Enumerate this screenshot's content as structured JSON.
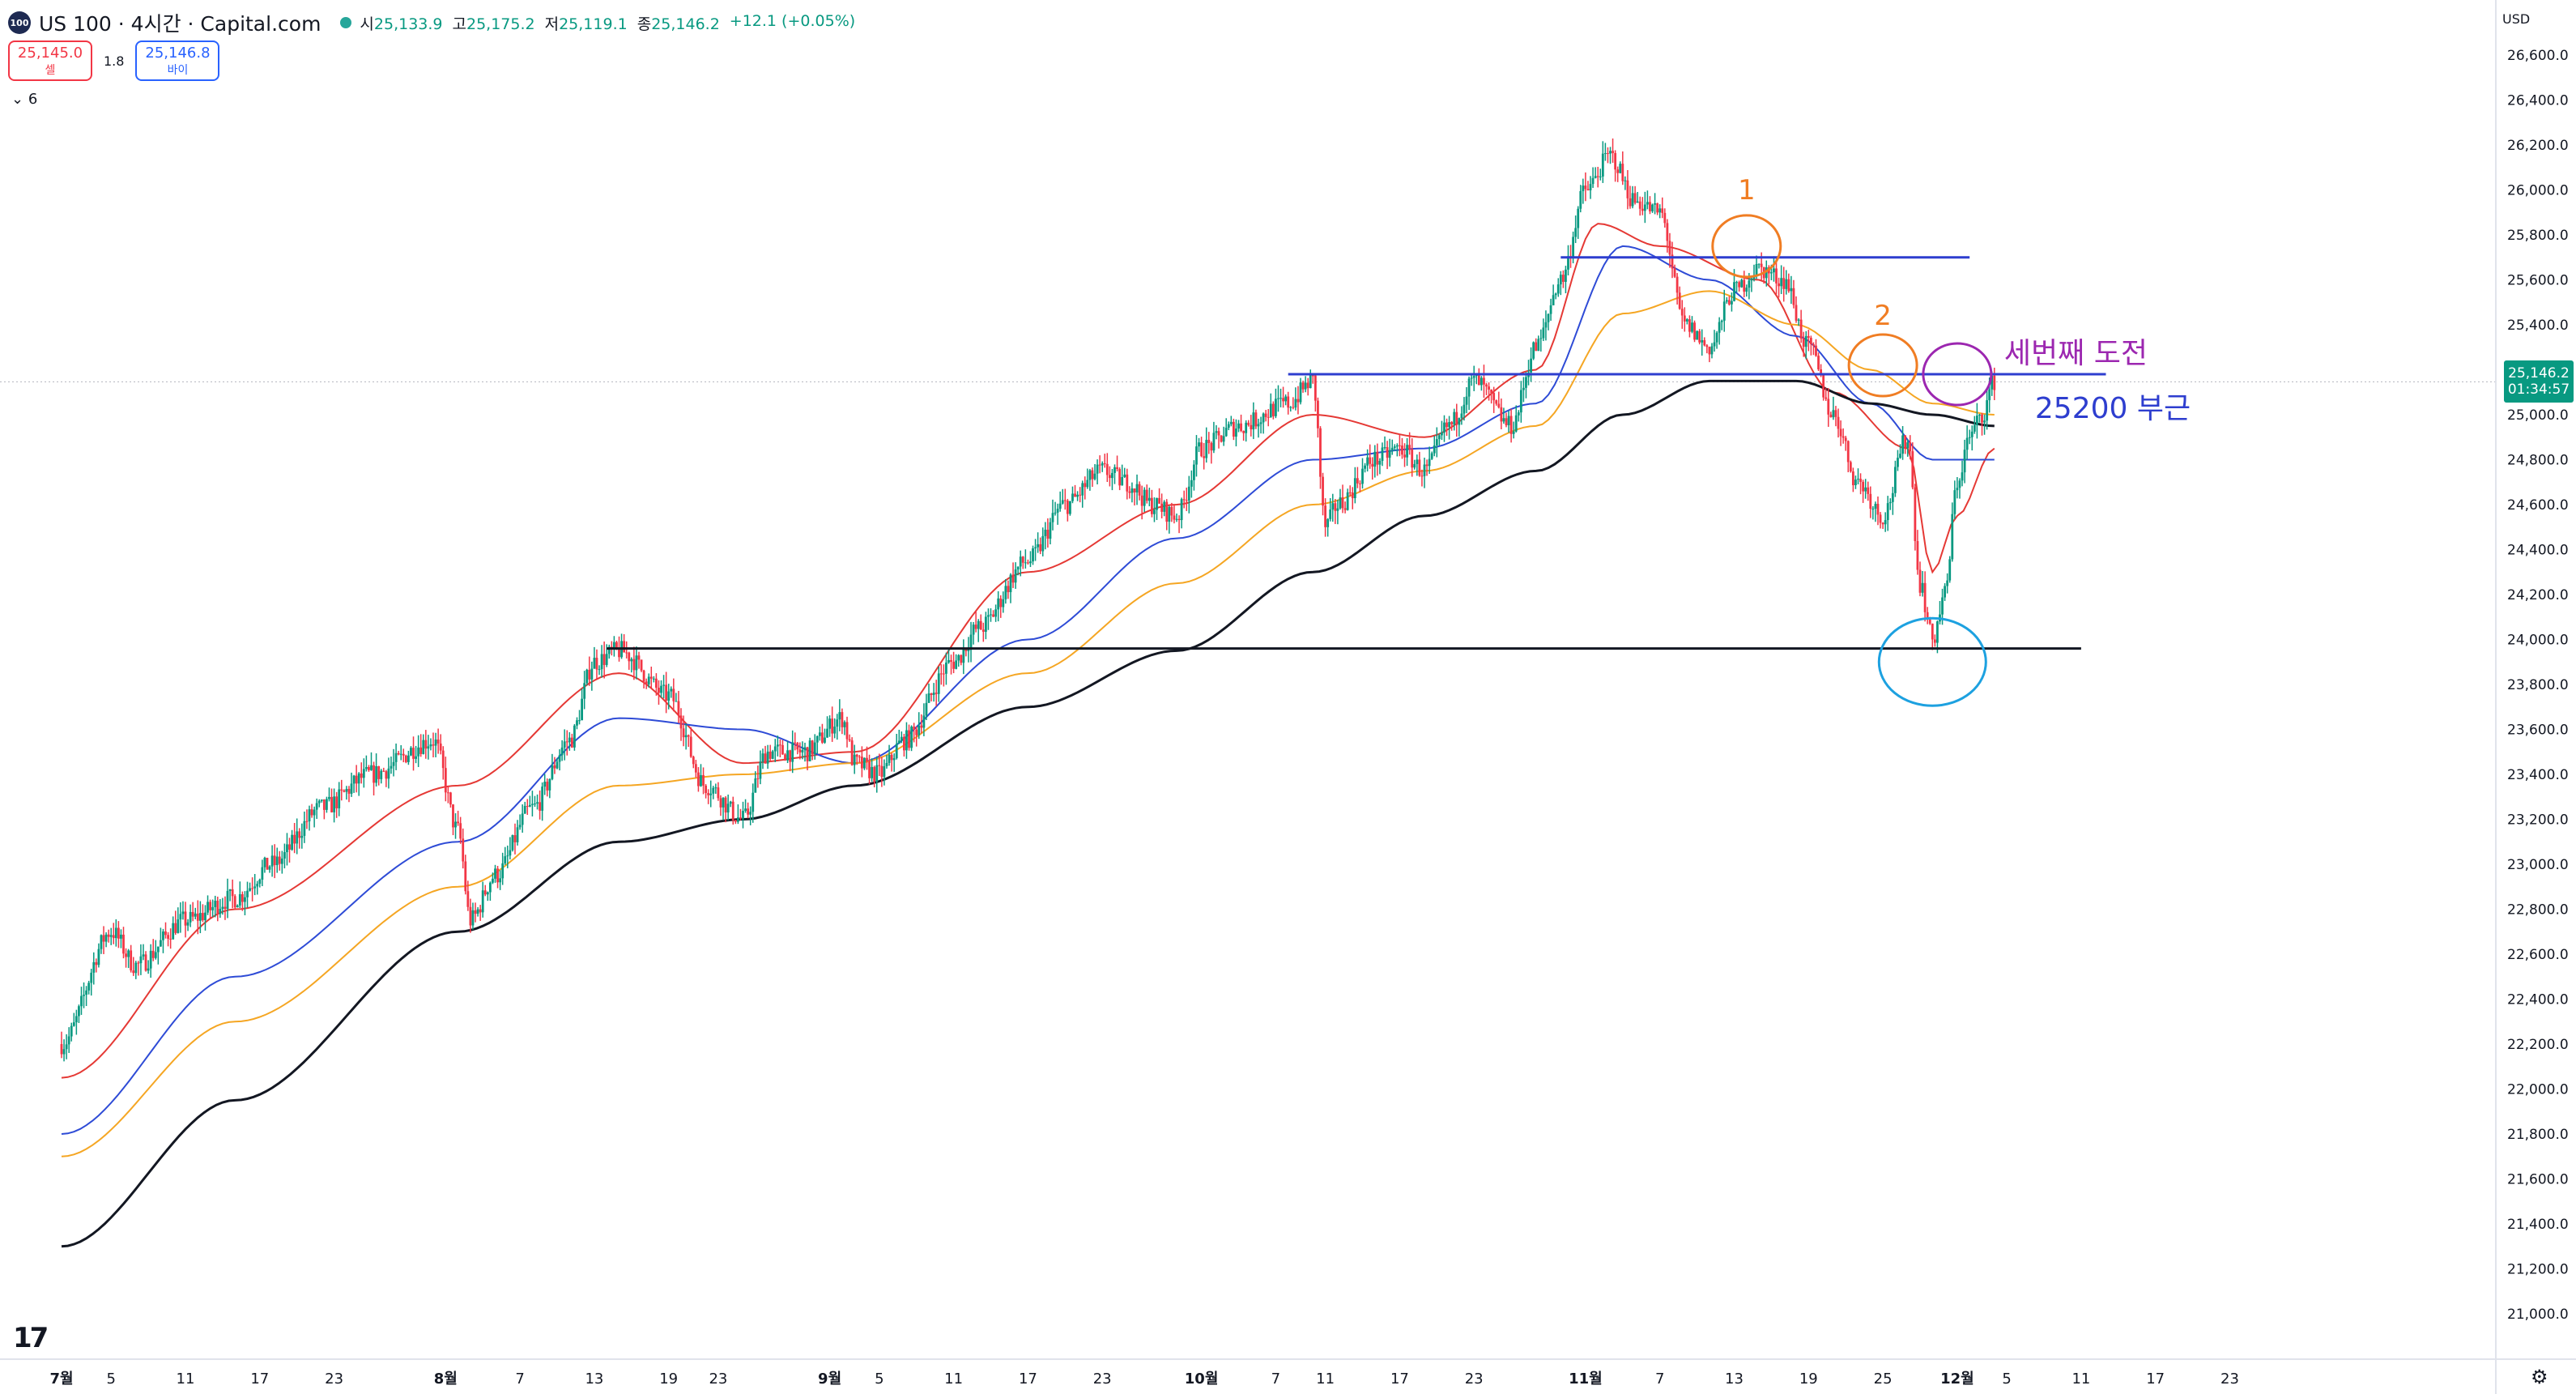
{
  "header": {
    "symbol_badge": "100",
    "title": "US 100 · 4시간 · Capital.com",
    "open_label": "시",
    "open": "25,133.9",
    "high_label": "고",
    "high": "25,175.2",
    "low_label": "저",
    "low": "25,119.1",
    "close_label": "종",
    "close": "25,146.2",
    "change": "+12.1 (+0.05%)"
  },
  "trade": {
    "sell_price": "25,145.0",
    "sell_label": "셀",
    "spread": "1.8",
    "buy_price": "25,146.8",
    "buy_label": "바이"
  },
  "indicators_toggle": "6",
  "currency": "USD",
  "last_price": {
    "price": "25,146.2",
    "countdown": "01:34:57",
    "color": "#089981"
  },
  "logo_text": "17",
  "settings_icon": "gear-icon",
  "annotations": {
    "label1": "1",
    "label2": "2",
    "challenge": "세번째 도전",
    "near": "25200 부근"
  },
  "chart_data": {
    "type": "candlestick",
    "timeframe": "4h",
    "ylim": [
      20800,
      26800
    ],
    "y_ticks": [
      21000,
      21200,
      21400,
      21600,
      21800,
      22000,
      22200,
      22400,
      22600,
      22800,
      23000,
      23200,
      23400,
      23600,
      23800,
      24000,
      24200,
      24400,
      24600,
      24800,
      25000,
      25200,
      25400,
      25600,
      25800,
      26000,
      26200,
      26400,
      26600
    ],
    "y_tick_labels": [
      "21,000.0",
      "21,200.0",
      "21,400.0",
      "21,600.0",
      "21,800.0",
      "22,000.0",
      "22,200.0",
      "22,400.0",
      "22,600.0",
      "22,800.0",
      "23,000.0",
      "23,200.0",
      "23,400.0",
      "23,600.0",
      "23,800.0",
      "24,000.0",
      "24,200.0",
      "24,400.0",
      "24,600.0",
      "24,800.0",
      "25,000.0",
      "25,200.0",
      "25,400.0",
      "25,600.0",
      "25,800.0",
      "26,000.0",
      "26,200.0",
      "26,400.0",
      "26,600.0"
    ],
    "x_ticks": [
      {
        "label": "7월",
        "month": true,
        "day": 0
      },
      {
        "label": "5",
        "day": 4
      },
      {
        "label": "11",
        "day": 10
      },
      {
        "label": "17",
        "day": 16
      },
      {
        "label": "23",
        "day": 22
      },
      {
        "label": "8월",
        "month": true,
        "day": 31
      },
      {
        "label": "7",
        "day": 37
      },
      {
        "label": "13",
        "day": 43
      },
      {
        "label": "19",
        "day": 49
      },
      {
        "label": "23",
        "day": 53
      },
      {
        "label": "9월",
        "month": true,
        "day": 62
      },
      {
        "label": "5",
        "day": 66
      },
      {
        "label": "11",
        "day": 72
      },
      {
        "label": "17",
        "day": 78
      },
      {
        "label": "23",
        "day": 84
      },
      {
        "label": "10월",
        "month": true,
        "day": 92
      },
      {
        "label": "7",
        "day": 98
      },
      {
        "label": "11",
        "day": 102
      },
      {
        "label": "17",
        "day": 108
      },
      {
        "label": "23",
        "day": 114
      },
      {
        "label": "11월",
        "month": true,
        "day": 123
      },
      {
        "label": "7",
        "day": 129
      },
      {
        "label": "13",
        "day": 135
      },
      {
        "label": "19",
        "day": 141
      },
      {
        "label": "25",
        "day": 147
      },
      {
        "label": "12월",
        "month": true,
        "day": 153
      },
      {
        "label": "5",
        "day": 157
      },
      {
        "label": "11",
        "day": 163
      },
      {
        "label": "17",
        "day": 169
      },
      {
        "label": "23",
        "day": 175
      }
    ],
    "price_path": [
      [
        0,
        22200
      ],
      [
        4,
        22700
      ],
      [
        6,
        22550
      ],
      [
        10,
        22750
      ],
      [
        14,
        22850
      ],
      [
        17,
        23000
      ],
      [
        21,
        23250
      ],
      [
        25,
        23400
      ],
      [
        30,
        23550
      ],
      [
        32,
        23150
      ],
      [
        33,
        22750
      ],
      [
        35,
        22950
      ],
      [
        38,
        23250
      ],
      [
        41,
        23550
      ],
      [
        43,
        23900
      ],
      [
        45,
        23950
      ],
      [
        49,
        23750
      ],
      [
        52,
        23350
      ],
      [
        55,
        23200
      ],
      [
        57,
        23500
      ],
      [
        60,
        23500
      ],
      [
        63,
        23650
      ],
      [
        64,
        23450
      ],
      [
        66,
        23400
      ],
      [
        68,
        23550
      ],
      [
        72,
        23900
      ],
      [
        74,
        24050
      ],
      [
        78,
        24350
      ],
      [
        81,
        24600
      ],
      [
        84,
        24750
      ],
      [
        86,
        24700
      ],
      [
        88,
        24600
      ],
      [
        90,
        24550
      ],
      [
        92,
        24850
      ],
      [
        95,
        24950
      ],
      [
        99,
        25050
      ],
      [
        101,
        25150
      ],
      [
        102,
        24500
      ],
      [
        103,
        24600
      ],
      [
        106,
        24800
      ],
      [
        108,
        24850
      ],
      [
        110,
        24750
      ],
      [
        112,
        24950
      ],
      [
        114,
        25150
      ],
      [
        117,
        24950
      ],
      [
        119,
        25300
      ],
      [
        121,
        25600
      ],
      [
        123,
        26000
      ],
      [
        125,
        26150
      ],
      [
        127,
        25950
      ],
      [
        129,
        25900
      ],
      [
        131,
        25400
      ],
      [
        133,
        25300
      ],
      [
        135,
        25550
      ],
      [
        137,
        25650
      ],
      [
        139,
        25600
      ],
      [
        141,
        25300
      ],
      [
        143,
        25000
      ],
      [
        145,
        24700
      ],
      [
        147,
        24550
      ],
      [
        149,
        24900
      ],
      [
        150,
        24250
      ],
      [
        151,
        24000
      ],
      [
        152,
        24200
      ],
      [
        153,
        24700
      ],
      [
        154,
        24900
      ],
      [
        155,
        25000
      ],
      [
        156,
        25150
      ]
    ],
    "moving_averages": [
      {
        "color": "#e53935",
        "path": [
          [
            0,
            22050
          ],
          [
            14,
            22800
          ],
          [
            32,
            23350
          ],
          [
            45,
            23850
          ],
          [
            55,
            23450
          ],
          [
            64,
            23500
          ],
          [
            78,
            24300
          ],
          [
            90,
            24600
          ],
          [
            101,
            25000
          ],
          [
            110,
            24900
          ],
          [
            119,
            25200
          ],
          [
            124,
            25850
          ],
          [
            129,
            25750
          ],
          [
            137,
            25600
          ],
          [
            143,
            25100
          ],
          [
            149,
            24850
          ],
          [
            151,
            24300
          ],
          [
            153,
            24550
          ],
          [
            156,
            24850
          ]
        ]
      },
      {
        "color": "#2e4bd6",
        "path": [
          [
            0,
            21800
          ],
          [
            14,
            22500
          ],
          [
            32,
            23100
          ],
          [
            45,
            23650
          ],
          [
            55,
            23600
          ],
          [
            64,
            23450
          ],
          [
            78,
            24000
          ],
          [
            90,
            24450
          ],
          [
            101,
            24800
          ],
          [
            110,
            24850
          ],
          [
            119,
            25050
          ],
          [
            126,
            25750
          ],
          [
            133,
            25600
          ],
          [
            140,
            25350
          ],
          [
            146,
            25050
          ],
          [
            151,
            24800
          ],
          [
            156,
            24800
          ]
        ]
      },
      {
        "color": "#f5a623",
        "path": [
          [
            0,
            21700
          ],
          [
            14,
            22300
          ],
          [
            32,
            22900
          ],
          [
            45,
            23350
          ],
          [
            55,
            23400
          ],
          [
            64,
            23450
          ],
          [
            78,
            23850
          ],
          [
            90,
            24250
          ],
          [
            101,
            24600
          ],
          [
            110,
            24750
          ],
          [
            119,
            24950
          ],
          [
            126,
            25450
          ],
          [
            133,
            25550
          ],
          [
            140,
            25400
          ],
          [
            146,
            25200
          ],
          [
            151,
            25050
          ],
          [
            156,
            25000
          ]
        ]
      },
      {
        "color": "#131722",
        "path": [
          [
            0,
            21300
          ],
          [
            14,
            21950
          ],
          [
            32,
            22700
          ],
          [
            45,
            23100
          ],
          [
            55,
            23200
          ],
          [
            64,
            23350
          ],
          [
            78,
            23700
          ],
          [
            90,
            23950
          ],
          [
            101,
            24300
          ],
          [
            110,
            24550
          ],
          [
            119,
            24750
          ],
          [
            126,
            25000
          ],
          [
            133,
            25150
          ],
          [
            140,
            25150
          ],
          [
            146,
            25050
          ],
          [
            151,
            25000
          ],
          [
            156,
            24950
          ]
        ]
      }
    ],
    "horizontal_lines": [
      {
        "color": "#131722",
        "price": 23960,
        "x_from": 44,
        "x_to": 163
      },
      {
        "color": "#2e3ecf",
        "price": 25180,
        "x_from": 99,
        "x_to": 165
      },
      {
        "color": "#2e3ecf",
        "price": 25700,
        "x_from": 121,
        "x_to": 154
      }
    ],
    "circles": [
      {
        "color": "#f07d23",
        "label": "1",
        "day": 136,
        "price": 25750
      },
      {
        "color": "#f07d23",
        "label": "2",
        "day": 147,
        "price": 25220
      },
      {
        "color": "#9c27b0",
        "day": 153,
        "price": 25180
      },
      {
        "color": "#1da1e0",
        "day": 151,
        "price": 23900
      }
    ],
    "last_price_line": 25146.2
  }
}
